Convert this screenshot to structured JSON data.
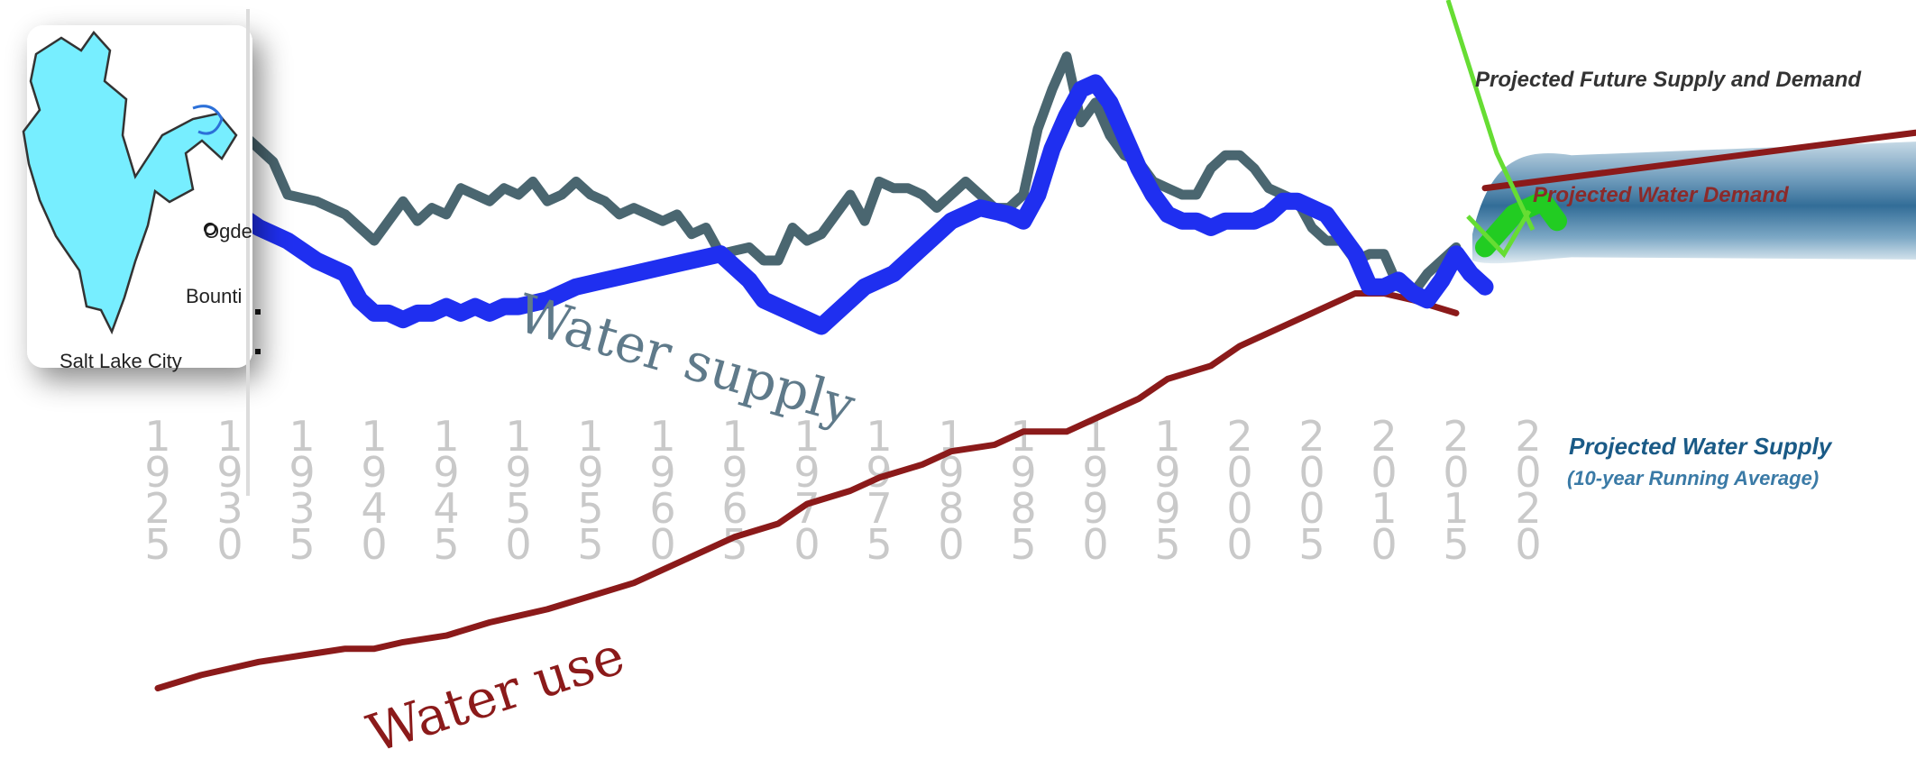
{
  "chart_data": {
    "type": "line",
    "x_tick_labels": [
      "1925",
      "1930",
      "1935",
      "1940",
      "1945",
      "1950",
      "1955",
      "1960",
      "1965",
      "1970",
      "1975",
      "1980",
      "1985",
      "1990",
      "1995",
      "2000",
      "2005",
      "2010",
      "2015",
      "2020"
    ],
    "xlim": [
      1925,
      2056
    ],
    "inline_labels": {
      "water_supply": "Water supply",
      "water_use": "Water use"
    },
    "annotations": {
      "projected_future": "Projected Future Supply and Demand",
      "projected_demand": "Projected Water Demand",
      "projected_supply_line1": "Projected Water Supply",
      "projected_supply_line2": "(10-year Running Average)"
    },
    "map_labels": [
      "Ogde",
      "Bounti",
      "Salt Lake City"
    ],
    "colors": {
      "annual_supply": "#4a6670",
      "running_average": "#1f2ff0",
      "water_use": "#8b1a1a",
      "projected_band": "#1c5d8c",
      "projected_future_arrow": "#66dd33",
      "projected_supply_marker": "#22cc22",
      "lake": "#77eeff"
    },
    "series": [
      {
        "key": "annual_supply",
        "x": [
          1925,
          1926,
          1928,
          1929,
          1931,
          1933,
          1934,
          1936,
          1938,
          1940,
          1942,
          1943,
          1944,
          1945,
          1946,
          1948,
          1949,
          1950,
          1951,
          1952,
          1953,
          1954,
          1955,
          1956,
          1957,
          1958,
          1959,
          1960,
          1961,
          1962,
          1963,
          1964,
          1966,
          1967,
          1968,
          1969,
          1970,
          1971,
          1972,
          1973,
          1974,
          1975,
          1976,
          1977,
          1978,
          1979,
          1980,
          1981,
          1982,
          1983,
          1984,
          1985,
          1986,
          1987,
          1988,
          1989,
          1990,
          1991,
          1992,
          1993,
          1994,
          1995,
          1996,
          1997,
          1998,
          1999,
          2000,
          2001,
          2002,
          2003,
          2004,
          2005,
          2006,
          2007,
          2008,
          2009,
          2010,
          2011,
          2012,
          2013,
          2014,
          2015
        ],
        "values": [
          100,
          98,
          96,
          98,
          89,
          85,
          80,
          79,
          77,
          73,
          79,
          76,
          78,
          77,
          81,
          79,
          81,
          80,
          82,
          79,
          80,
          82,
          80,
          79,
          77,
          78,
          77,
          76,
          77,
          74,
          75,
          71,
          72,
          70,
          70,
          75,
          73,
          74,
          77,
          80,
          76,
          82,
          81,
          81,
          80,
          78,
          80,
          82,
          80,
          78,
          78,
          80,
          90,
          96,
          101,
          91,
          94,
          89,
          86,
          85,
          82,
          81,
          80,
          80,
          84,
          86,
          86,
          84,
          81,
          80,
          79,
          75,
          73,
          73,
          70,
          71,
          71,
          66,
          65,
          68,
          70,
          72
        ]
      },
      {
        "key": "running_average",
        "x": [
          1930,
          1932,
          1934,
          1936,
          1938,
          1939,
          1940,
          1941,
          1942,
          1943,
          1944,
          1945,
          1946,
          1947,
          1948,
          1949,
          1950,
          1952,
          1954,
          1956,
          1958,
          1960,
          1962,
          1964,
          1966,
          1967,
          1968,
          1969,
          1970,
          1971,
          1972,
          1974,
          1976,
          1978,
          1980,
          1982,
          1984,
          1985,
          1986,
          1987,
          1988,
          1989,
          1990,
          1991,
          1992,
          1993,
          1994,
          1995,
          1996,
          1997,
          1998,
          1999,
          2000,
          2001,
          2002,
          2003,
          2004,
          2006,
          2008,
          2009,
          2010,
          2011,
          2012,
          2013,
          2014,
          2015,
          2016,
          2017
        ],
        "values": [
          78,
          75,
          73,
          70,
          68,
          64,
          62,
          62,
          61,
          62,
          62,
          63,
          62,
          63,
          62,
          63,
          63,
          64,
          66,
          67,
          68,
          69,
          70,
          71,
          67,
          64,
          63,
          62,
          61,
          60,
          62,
          66,
          68,
          72,
          76,
          78,
          77,
          76,
          80,
          87,
          92,
          96,
          97,
          94,
          89,
          84,
          80,
          77,
          76,
          76,
          75,
          76,
          76,
          76,
          77,
          79,
          79,
          77,
          71,
          66,
          66,
          67,
          65,
          64,
          67,
          71,
          68,
          66
        ]
      },
      {
        "key": "water_use",
        "x": [
          1925,
          1928,
          1930,
          1932,
          1935,
          1938,
          1940,
          1942,
          1945,
          1948,
          1950,
          1952,
          1955,
          1958,
          1960,
          1963,
          1965,
          1968,
          1970,
          1973,
          1975,
          1978,
          1980,
          1983,
          1985,
          1988,
          1990,
          1993,
          1995,
          1998,
          2000,
          2002,
          2005,
          2008,
          2010,
          2012,
          2015
        ],
        "values": [
          5,
          7,
          8,
          9,
          10,
          11,
          11,
          12,
          13,
          15,
          16,
          17,
          19,
          21,
          23,
          26,
          28,
          30,
          33,
          35,
          37,
          39,
          41,
          42,
          44,
          44,
          46,
          49,
          52,
          54,
          57,
          59,
          62,
          65,
          65,
          64,
          62
        ]
      }
    ],
    "projection": {
      "x_start": 2017,
      "x_end": 2056,
      "demand": [
        {
          "x": 2017,
          "y": 81
        },
        {
          "x": 2056,
          "y": 92
        }
      ],
      "supply_marker": [
        {
          "x": 2017,
          "y": 72
        },
        {
          "x": 2019,
          "y": 77
        },
        {
          "x": 2021,
          "y": 79
        },
        {
          "x": 2022,
          "y": 76
        }
      ]
    }
  }
}
